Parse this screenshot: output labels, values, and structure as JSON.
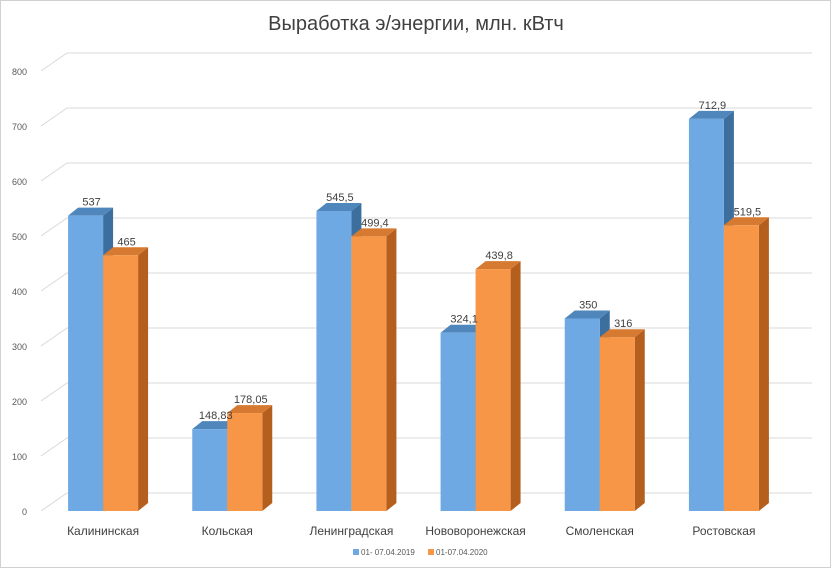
{
  "chart_data": {
    "type": "bar",
    "title": "Выработка э/энергии, млн. кВтч",
    "xlabel": "",
    "ylabel": "",
    "categories": [
      "Калининская",
      "Кольская",
      "Ленинградская",
      "Нововоронежская",
      "Смоленская",
      "Ростовская"
    ],
    "series": [
      {
        "name": "01- 07.04.2019",
        "values": [
          537,
          148.83,
          545.5,
          324.1,
          350,
          712.9
        ],
        "labels": [
          "537",
          "148,83",
          "545,5",
          "324,1",
          "350",
          "712,9"
        ]
      },
      {
        "name": "01-07.04.2020",
        "values": [
          465,
          178.05,
          499.4,
          439.8,
          316,
          519.5
        ],
        "labels": [
          "465",
          "178,05",
          "499,4",
          "439,8",
          "316",
          "519,5"
        ]
      }
    ],
    "ylim": [
      0,
      800
    ],
    "yticks": [
      0,
      100,
      200,
      300,
      400,
      500,
      600,
      700,
      800
    ],
    "grid": true,
    "legend_position": "bottom",
    "colors": {
      "series": [
        "#6ea9e4",
        "#f79646"
      ],
      "series_side": [
        "#3d6f9e",
        "#b55f1e"
      ],
      "series_top": [
        "#4f86bb",
        "#d67a31"
      ],
      "grid": "#d9d9d9",
      "text": "#404040"
    }
  }
}
